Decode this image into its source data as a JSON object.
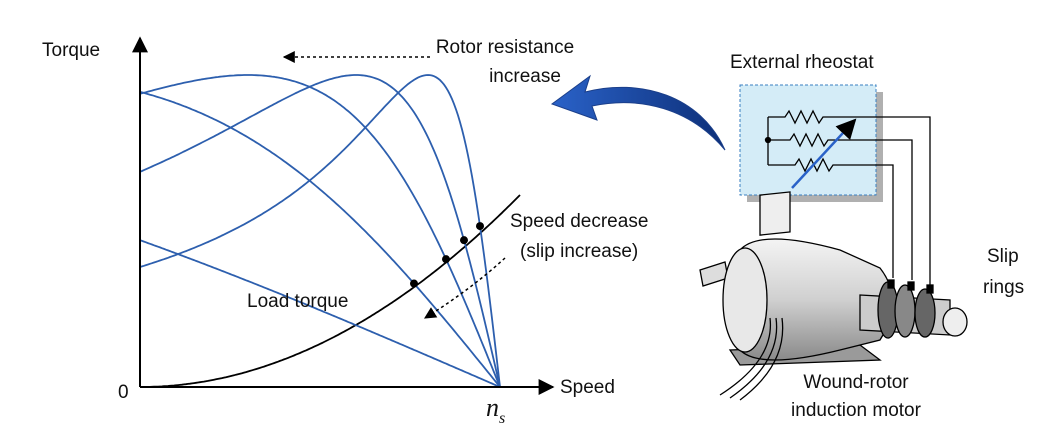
{
  "axes": {
    "y_label": "Torque",
    "x_label": "Speed",
    "origin": "0",
    "sync_speed": {
      "main": "n",
      "sub": "s"
    }
  },
  "annotations": {
    "rotor_resistance": [
      "Rotor resistance",
      "increase"
    ],
    "load_torque": "Load torque",
    "speed_decrease": [
      "Speed decrease",
      "(slip increase)"
    ]
  },
  "rheostat": "External rheostat",
  "slip_rings": [
    "Slip",
    "rings"
  ],
  "motor": [
    "Wound-rotor",
    "induction motor"
  ]
}
